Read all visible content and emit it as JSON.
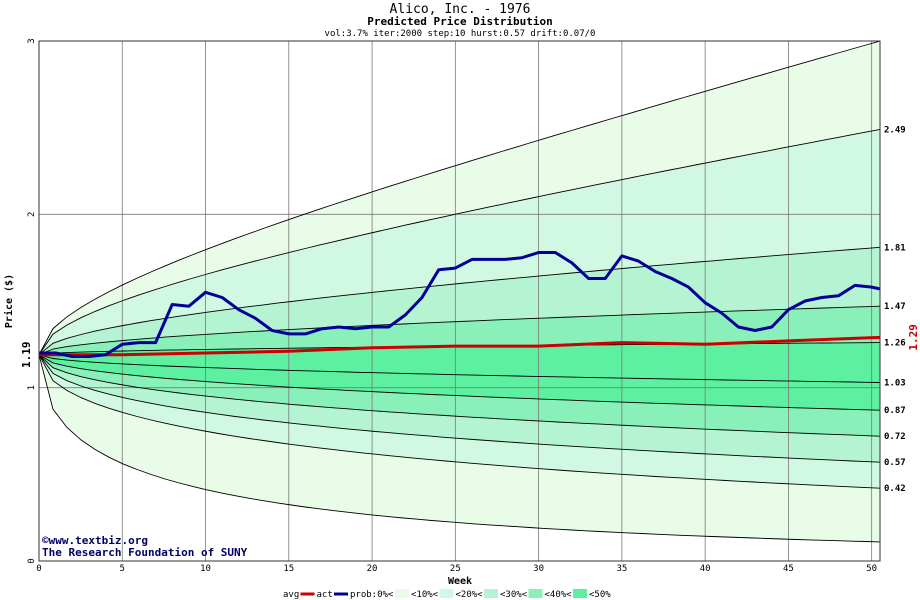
{
  "header": {
    "title": "Alico, Inc. - 1976",
    "subtitle": "Predicted Price Distribution",
    "params": "vol:3.7% iter:2000 step:10 hurst:0.57 drift:0.07/0"
  },
  "credits": {
    "line1": "©www.textbiz.org",
    "line2": "The Research Foundation of SUNY"
  },
  "chart_data": {
    "type": "area",
    "xlabel": "Week",
    "ylabel": "Price ($)",
    "xlim": [
      0,
      50.5
    ],
    "ylim": [
      0,
      3
    ],
    "x_ticks": [
      0,
      5,
      10,
      15,
      20,
      25,
      30,
      35,
      40,
      45,
      50
    ],
    "y_ticks": [
      0,
      1,
      2,
      3
    ],
    "grid": true,
    "start_price": 1.19,
    "start_label": "1.19",
    "end_avg_label": "1.29",
    "percentile_curves": [
      {
        "end": 3.0,
        "label": ""
      },
      {
        "end": 2.49,
        "label": "2.49"
      },
      {
        "end": 1.81,
        "label": "1.81"
      },
      {
        "end": 1.47,
        "label": "1.47"
      },
      {
        "end": 1.26,
        "label": "1.26"
      },
      {
        "end": 1.03,
        "label": "1.03"
      },
      {
        "end": 0.87,
        "label": "0.87"
      },
      {
        "end": 0.72,
        "label": "0.72"
      },
      {
        "end": 0.57,
        "label": "0.57"
      },
      {
        "end": 0.42,
        "label": "0.42"
      },
      {
        "end": 0.11,
        "label": ""
      }
    ],
    "band_colors": [
      "#e8fce8",
      "#d0f8e2",
      "#b4f4d2",
      "#88f0b8",
      "#5cf0a0"
    ],
    "avg_series": {
      "name": "avg",
      "color": "#cc0000",
      "x": [
        0,
        5,
        10,
        15,
        20,
        25,
        30,
        35,
        40,
        45,
        50.5
      ],
      "y": [
        1.19,
        1.19,
        1.2,
        1.21,
        1.23,
        1.24,
        1.24,
        1.26,
        1.25,
        1.27,
        1.29
      ]
    },
    "act_series": {
      "name": "act",
      "color": "#000099",
      "x": [
        0,
        1,
        2,
        3,
        4,
        5,
        6,
        7,
        8,
        9,
        10,
        11,
        12,
        13,
        14,
        15,
        16,
        17,
        18,
        19,
        20,
        21,
        22,
        23,
        24,
        25,
        26,
        27,
        28,
        29,
        30,
        31,
        32,
        33,
        34,
        35,
        36,
        37,
        38,
        39,
        40,
        41,
        42,
        43,
        44,
        45,
        46,
        47,
        48,
        49,
        50,
        50.5
      ],
      "y": [
        1.2,
        1.2,
        1.18,
        1.18,
        1.19,
        1.25,
        1.26,
        1.26,
        1.48,
        1.47,
        1.55,
        1.52,
        1.45,
        1.4,
        1.33,
        1.31,
        1.31,
        1.34,
        1.35,
        1.34,
        1.35,
        1.35,
        1.42,
        1.52,
        1.68,
        1.69,
        1.74,
        1.74,
        1.74,
        1.75,
        1.78,
        1.78,
        1.72,
        1.63,
        1.63,
        1.76,
        1.73,
        1.67,
        1.63,
        1.58,
        1.49,
        1.43,
        1.35,
        1.33,
        1.35,
        1.45,
        1.5,
        1.52,
        1.53,
        1.59,
        1.58,
        1.57
      ]
    },
    "legend": {
      "items": [
        "avg",
        "act",
        "prob:0%<",
        "<10%<",
        "<20%<",
        "<30%<",
        "<40%<",
        "<50%"
      ],
      "placement": "bottom"
    }
  }
}
